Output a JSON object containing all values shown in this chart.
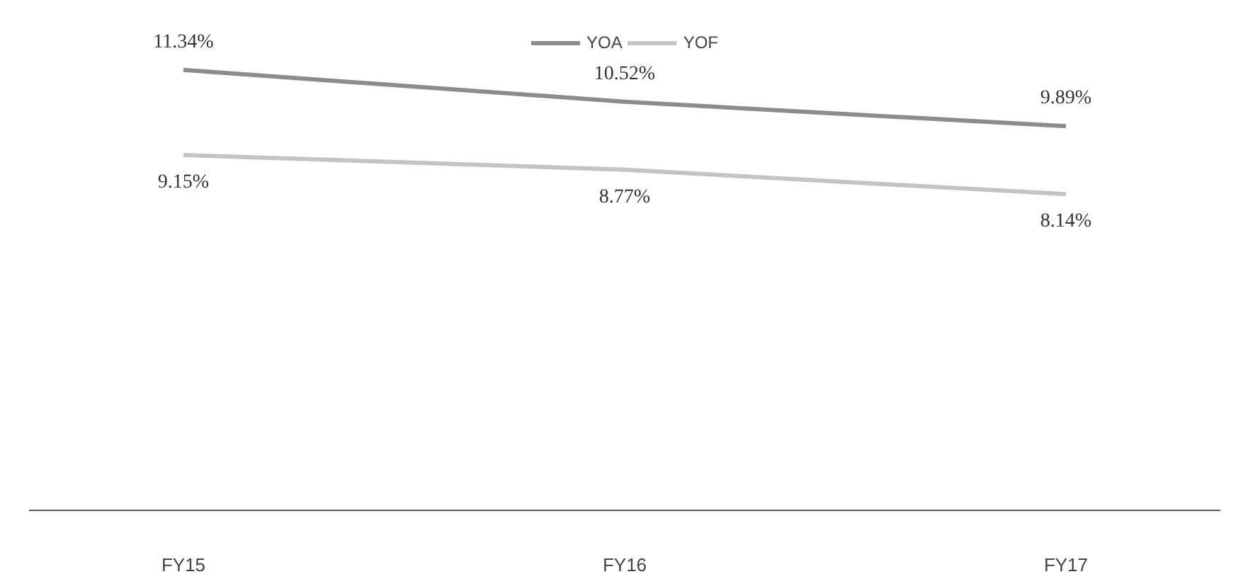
{
  "chart_data": {
    "type": "line",
    "categories": [
      "FY15",
      "FY16",
      "FY17"
    ],
    "series": [
      {
        "name": "YOA",
        "color": "#8c8c8c",
        "values": [
          11.34,
          10.52,
          9.89
        ],
        "value_labels": [
          "11.34%",
          "10.52%",
          "9.89%"
        ]
      },
      {
        "name": "YOF",
        "color": "#c4c4c4",
        "values": [
          9.15,
          8.77,
          8.14
        ],
        "value_labels": [
          "9.15%",
          "8.77%",
          "8.14%"
        ]
      }
    ],
    "legend": "top",
    "grid": false,
    "marker": "none",
    "line_style": "solid"
  }
}
